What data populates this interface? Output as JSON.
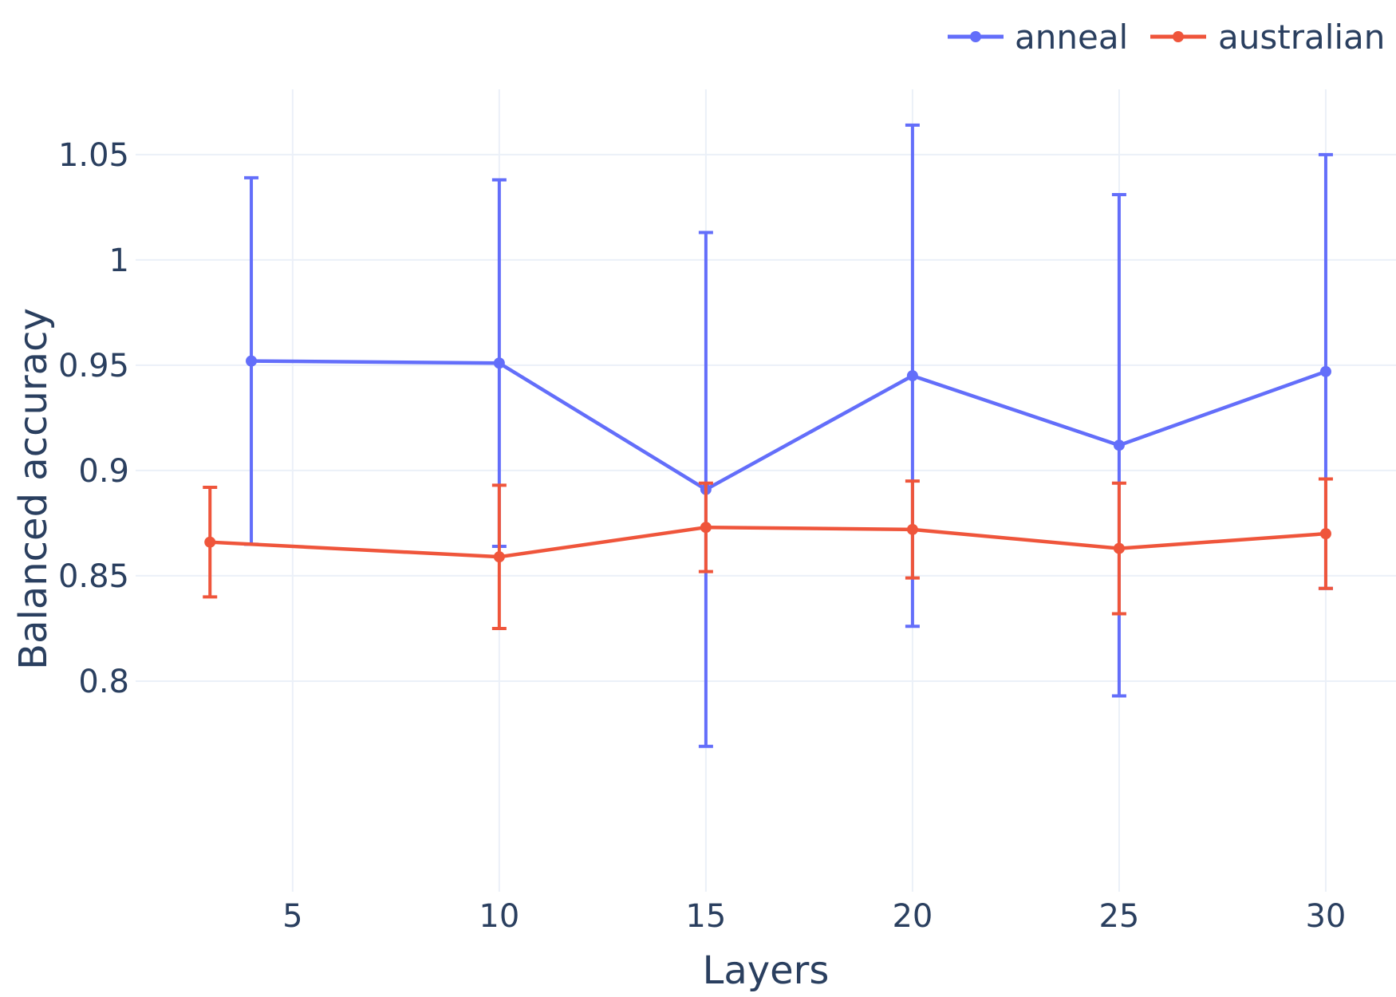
{
  "chart_data": {
    "type": "line",
    "xlabel": "Layers",
    "ylabel": "Balanced accuracy",
    "xlim": [
      1.2,
      31.7
    ],
    "ylim": [
      0.7,
      1.081
    ],
    "x_ticks": [
      5,
      10,
      15,
      20,
      25,
      30
    ],
    "y_ticks": [
      0.8,
      0.85,
      0.9,
      0.95,
      1,
      1.05
    ],
    "y_tick_labels": [
      "0.8",
      "0.85",
      "0.9",
      "0.95",
      "1",
      "1.05"
    ],
    "grid": true,
    "legend_position": "top-right",
    "series": [
      {
        "name": "anneal",
        "color": "#636efa",
        "x": [
          4,
          10,
          15,
          20,
          25,
          30
        ],
        "y": [
          0.952,
          0.951,
          0.891,
          0.945,
          0.912,
          0.947
        ],
        "error": [
          0.087,
          0.087,
          0.122,
          0.119,
          0.119,
          0.103
        ]
      },
      {
        "name": "australian",
        "color": "#ef553b",
        "x": [
          3,
          10,
          15,
          20,
          25,
          30
        ],
        "y": [
          0.866,
          0.859,
          0.873,
          0.872,
          0.863,
          0.87
        ],
        "error": [
          0.026,
          0.034,
          0.021,
          0.023,
          0.031,
          0.026
        ]
      }
    ]
  }
}
